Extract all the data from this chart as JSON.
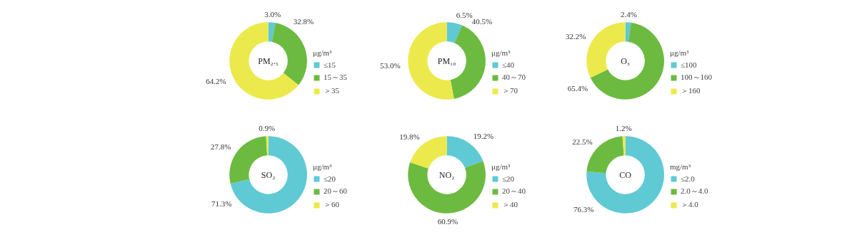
{
  "chart_data": [
    {
      "type": "donut",
      "title": "PM₂.₅",
      "legend_title": "μg/m³",
      "categories": [
        "≤15",
        "15～35",
        "＞35"
      ],
      "values": [
        3.0,
        32.8,
        64.2
      ],
      "value_labels": [
        "3.0%",
        "32.8%",
        "64.2%"
      ],
      "colors": [
        "#5fc9d4",
        "#6cbb40",
        "#ece94c"
      ],
      "legend": "right"
    },
    {
      "type": "donut",
      "title": "PM₁₀",
      "legend_title": "μg/m³",
      "categories": [
        "≤40",
        "40～70",
        "＞70"
      ],
      "values": [
        6.5,
        40.5,
        53.0
      ],
      "value_labels": [
        "6.5%",
        "40.5%",
        "53.0%"
      ],
      "colors": [
        "#5fc9d4",
        "#6cbb40",
        "#ece94c"
      ],
      "legend": "right"
    },
    {
      "type": "donut",
      "title": "O₃",
      "legend_title": "μg/m³",
      "categories": [
        "≤100",
        "100～160",
        "＞160"
      ],
      "values": [
        2.4,
        65.4,
        32.2
      ],
      "value_labels": [
        "2.4%",
        "65.4%",
        "32.2%"
      ],
      "colors": [
        "#5fc9d4",
        "#6cbb40",
        "#ece94c"
      ],
      "legend": "right"
    },
    {
      "type": "donut",
      "title": "SO₂",
      "legend_title": "μg/m³",
      "categories": [
        "≤20",
        "20～60",
        "＞60"
      ],
      "values": [
        71.3,
        27.8,
        0.9
      ],
      "value_labels": [
        "71.3%",
        "27.8%",
        "0.9%"
      ],
      "colors": [
        "#5fc9d4",
        "#6cbb40",
        "#ece94c"
      ],
      "legend": "right"
    },
    {
      "type": "donut",
      "title": "NO₂",
      "legend_title": "μg/m³",
      "categories": [
        "≤20",
        "20～40",
        "＞40"
      ],
      "values": [
        19.2,
        60.9,
        19.8
      ],
      "value_labels": [
        "19.2%",
        "60.9%",
        "19.8%"
      ],
      "colors": [
        "#5fc9d4",
        "#6cbb40",
        "#ece94c"
      ],
      "legend": "right"
    },
    {
      "type": "donut",
      "title": "CO",
      "legend_title": "mg/m³",
      "categories": [
        "≤2.0",
        "2.0～4.0",
        "＞4.0"
      ],
      "values": [
        76.3,
        22.5,
        1.2
      ],
      "value_labels": [
        "76.3%",
        "22.5%",
        "1.2%"
      ],
      "colors": [
        "#5fc9d4",
        "#6cbb40",
        "#ece94c"
      ],
      "legend": "right"
    }
  ]
}
